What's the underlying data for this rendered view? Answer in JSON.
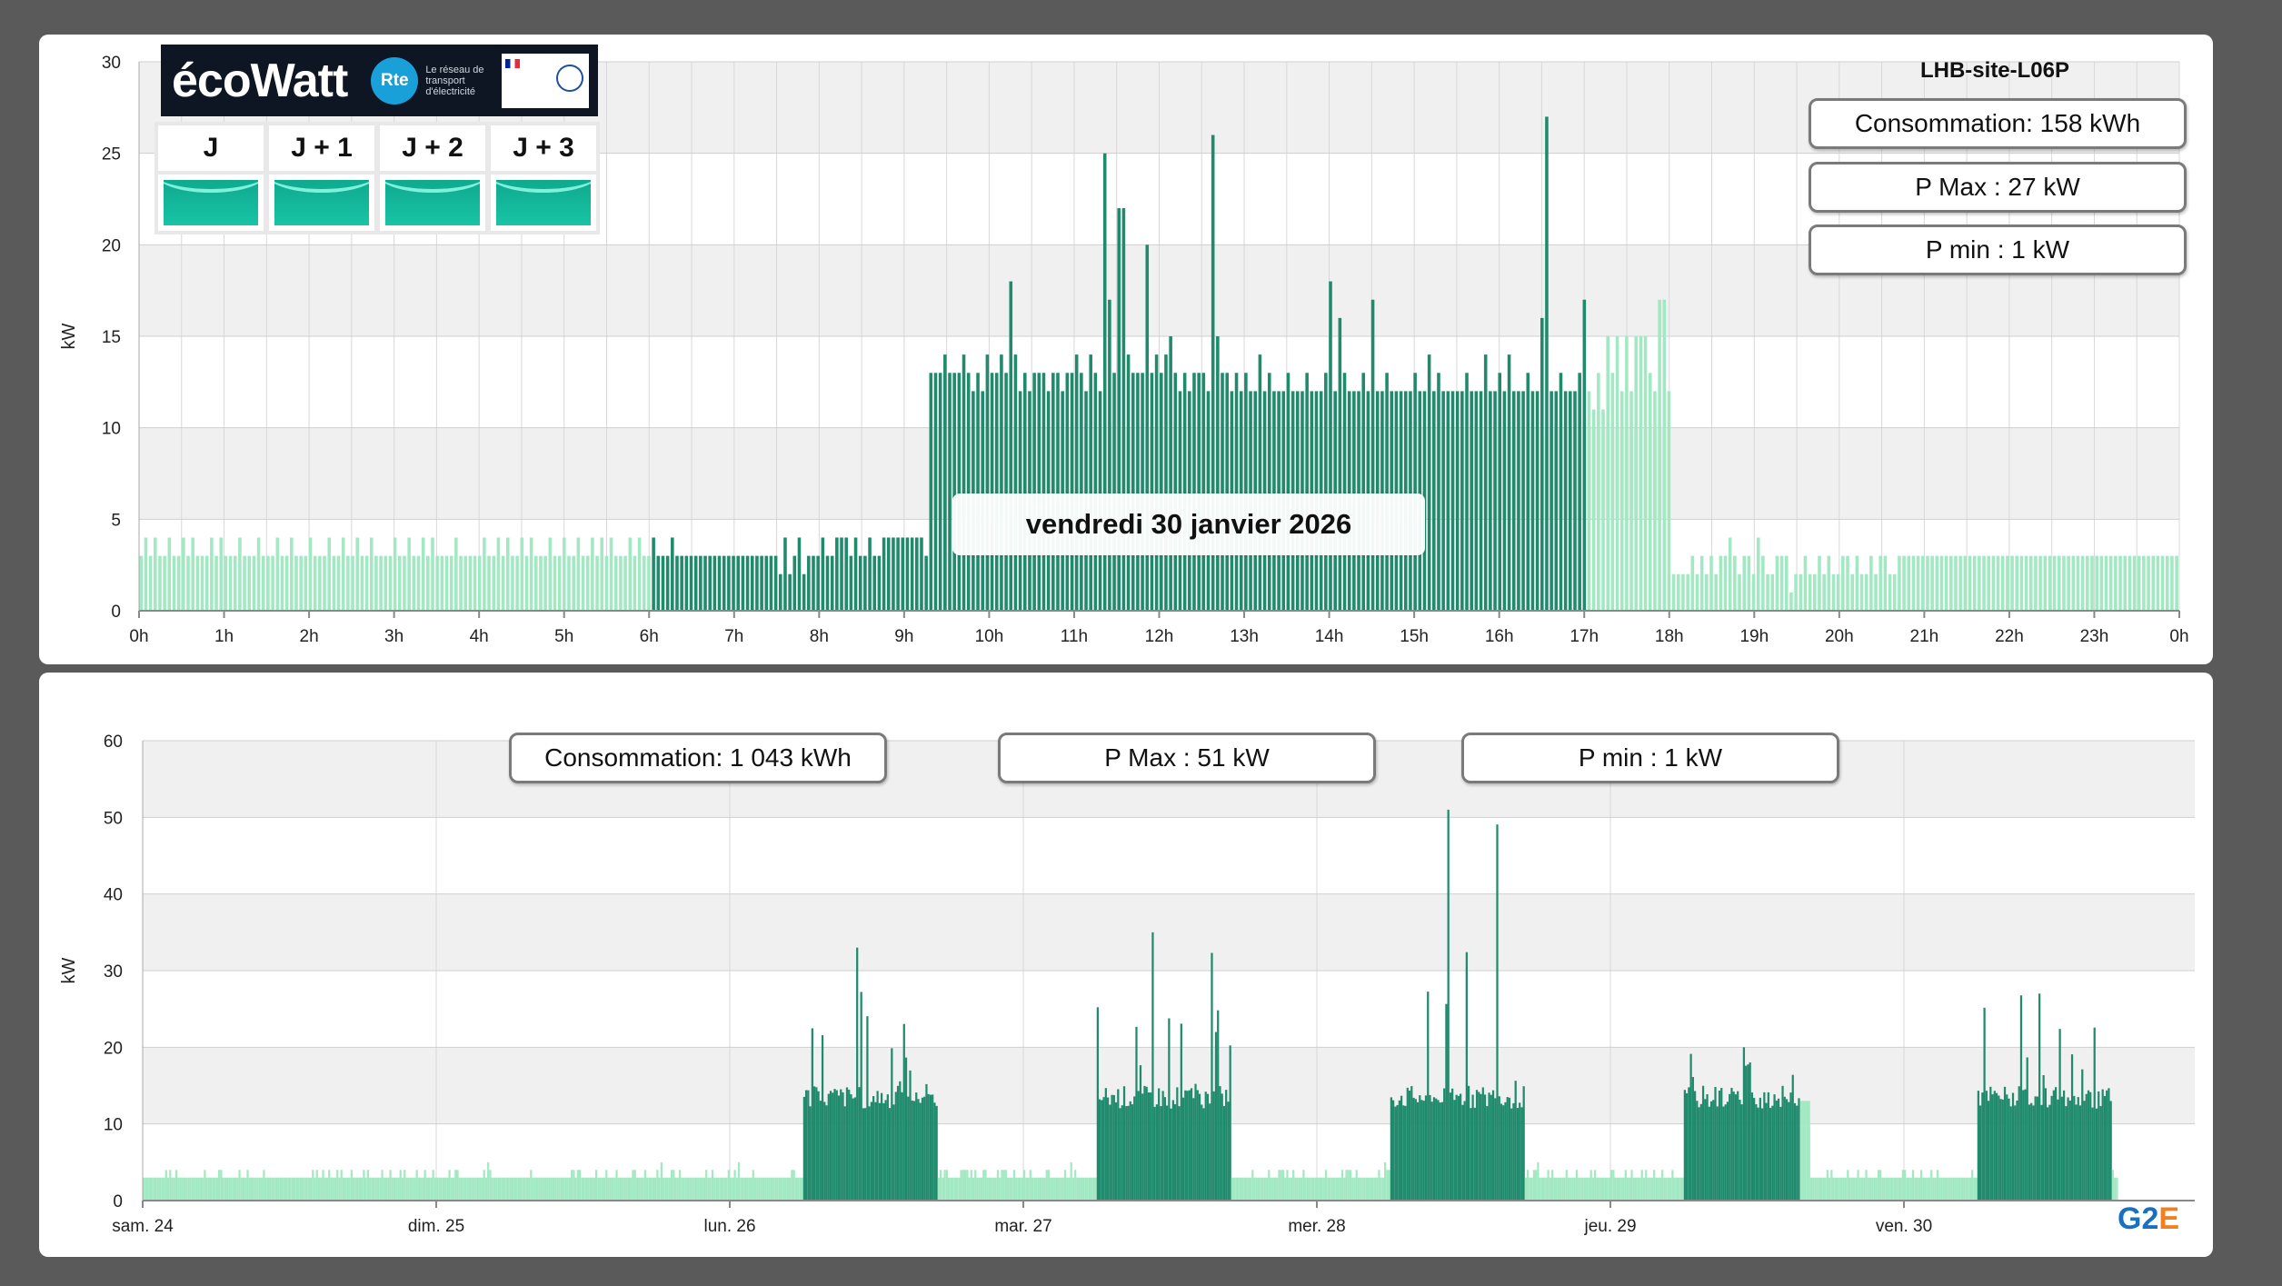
{
  "top_chart": {
    "site": "LHB-site-L06P",
    "consommation": "Consommation: 158 kWh",
    "pmax": "P Max :  27 kW",
    "pmin": "P min : 1 kW",
    "date_label": "vendredi 30 janvier 2026",
    "ylabel": "kW",
    "yticks": [
      "0",
      "5",
      "10",
      "15",
      "20",
      "25",
      "30"
    ],
    "xticks": [
      "0h",
      "1h",
      "2h",
      "3h",
      "4h",
      "5h",
      "6h",
      "7h",
      "8h",
      "9h",
      "10h",
      "11h",
      "12h",
      "13h",
      "14h",
      "15h",
      "16h",
      "17h",
      "18h",
      "19h",
      "20h",
      "21h",
      "22h",
      "23h",
      "0h"
    ]
  },
  "bottom_chart": {
    "consommation": "Consommation: 1 043 kWh",
    "pmax": "P Max :  51 kW",
    "pmin": "P min : 1 kW",
    "ylabel": "kW",
    "yticks": [
      "0",
      "10",
      "20",
      "30",
      "40",
      "50",
      "60"
    ],
    "xticks": [
      "sam. 24",
      "dim. 25",
      "lun. 26",
      "mar. 27",
      "mer. 28",
      "jeu. 29",
      "ven. 30"
    ]
  },
  "ecowatt": {
    "logo_text": "écoWatt",
    "rte": "Rte",
    "rte_caption": "Le réseau de transport d'électricité",
    "days": [
      "J",
      "J + 1",
      "J + 2",
      "J + 3"
    ],
    "day_status_color": "#13b89a"
  },
  "brand": {
    "g2": "G2",
    "g2_suffix": "E"
  },
  "colors": {
    "active": "#208a6c",
    "inactive": "#a2e8c2",
    "grid_band": "#f0f0f0"
  },
  "chart_data": [
    {
      "type": "bar",
      "title": "LHB-site-L06P",
      "xlabel": "",
      "ylabel": "kW",
      "ylim": [
        0,
        30
      ],
      "x_range_hours": [
        0,
        24
      ],
      "interval_minutes": 5,
      "series": [
        {
          "values": [
            3,
            4,
            3,
            4,
            3,
            3,
            4,
            3,
            3,
            4,
            3,
            4,
            3,
            3,
            3,
            4,
            3,
            4,
            3,
            3,
            3,
            4,
            3,
            3,
            3,
            4,
            3,
            3,
            3,
            4,
            3,
            3,
            4,
            3,
            3,
            3,
            4,
            3,
            3,
            3,
            4,
            3,
            3,
            4,
            3,
            3,
            4,
            3,
            3,
            4,
            3,
            3,
            3,
            3,
            4,
            3,
            3,
            4,
            3,
            3,
            4,
            3,
            4,
            3,
            3,
            3,
            3,
            4,
            3,
            3,
            3,
            3,
            3,
            4,
            3,
            3,
            4,
            3,
            4,
            3,
            3,
            4,
            3,
            4,
            3,
            3,
            3,
            4,
            3,
            3,
            4,
            3,
            3,
            4,
            3,
            3,
            4,
            3,
            4,
            3,
            4,
            3,
            3,
            3,
            4,
            3,
            4,
            3,
            3,
            4,
            3,
            3,
            3,
            4,
            3,
            3,
            3,
            3,
            3,
            3,
            3,
            3,
            3,
            3,
            3,
            3,
            3,
            3,
            3,
            3,
            3,
            3,
            3,
            3,
            3,
            3,
            2,
            4,
            2,
            3,
            4,
            2,
            3,
            3,
            3,
            4,
            3,
            3,
            4,
            4,
            4,
            3,
            4,
            3,
            3,
            4,
            3,
            3,
            4,
            4,
            4,
            4,
            4,
            4,
            4,
            4,
            4,
            3,
            13,
            13,
            13,
            14,
            13,
            13,
            13,
            14,
            13,
            12,
            13,
            12,
            14,
            13,
            13,
            14,
            13,
            18,
            14,
            12,
            13,
            12,
            13,
            13,
            13,
            12,
            13,
            13,
            12,
            13,
            13,
            14,
            13,
            12,
            14,
            13,
            12,
            25,
            17,
            13,
            22,
            22,
            14,
            13,
            13,
            13,
            20,
            13,
            14,
            13,
            14,
            15,
            13,
            12,
            13,
            12,
            13,
            13,
            13,
            12,
            26,
            15,
            13,
            13,
            12,
            13,
            12,
            13,
            12,
            12,
            14,
            12,
            13,
            12,
            12,
            12,
            13,
            12,
            12,
            12,
            13,
            12,
            12,
            12,
            13,
            18,
            12,
            16,
            13,
            12,
            12,
            12,
            13,
            12,
            17,
            12,
            12,
            13,
            12,
            12,
            12,
            12,
            12,
            13,
            12,
            12,
            14,
            12,
            13,
            12,
            12,
            12,
            12,
            12,
            13,
            12,
            12,
            12,
            14,
            12,
            12,
            13,
            12,
            14,
            12,
            12,
            12,
            13,
            12,
            12,
            16,
            27,
            12,
            12,
            13,
            12,
            12,
            12,
            13,
            17,
            12,
            11,
            13,
            11,
            15,
            13,
            15,
            12,
            15,
            12,
            15,
            15,
            15,
            13,
            12,
            17,
            17,
            12,
            2,
            2,
            2,
            2,
            3,
            2,
            3,
            2,
            3,
            2,
            3,
            3,
            4,
            3,
            2,
            3,
            3,
            2,
            4,
            3,
            2,
            2,
            3,
            3,
            3,
            1,
            2,
            2,
            3,
            2,
            2,
            3,
            2,
            3,
            2,
            2,
            3,
            3,
            2,
            3,
            2,
            2,
            3,
            2,
            3,
            3,
            2,
            2,
            3,
            3,
            3,
            3,
            3,
            3,
            3,
            3,
            3,
            3,
            3,
            3,
            3,
            3,
            3,
            3,
            3,
            3,
            3,
            3,
            3,
            3,
            3,
            3,
            3,
            3,
            3,
            3,
            3,
            3,
            3,
            3,
            3,
            3,
            3,
            3,
            3,
            3,
            3,
            3,
            3,
            3,
            3,
            3,
            3,
            3,
            3,
            3,
            3,
            3,
            3,
            3,
            3,
            3,
            3,
            3,
            3,
            3,
            3,
            3
          ]
        }
      ]
    },
    {
      "type": "area",
      "xlabel": "",
      "ylabel": "kW",
      "ylim": [
        0,
        60
      ],
      "categories": [
        "sam. 24",
        "dim. 25",
        "lun. 26",
        "mar. 27",
        "mer. 28",
        "jeu. 29",
        "ven. 30"
      ],
      "summary_peaks_kW": {
        "lun. 26": 33,
        "mar. 27": 35,
        "mer. 28": 51,
        "jeu. 29": 20,
        "ven. 30": 27
      },
      "active_periods_hours": [
        [
          6,
          17
        ]
      ]
    }
  ]
}
